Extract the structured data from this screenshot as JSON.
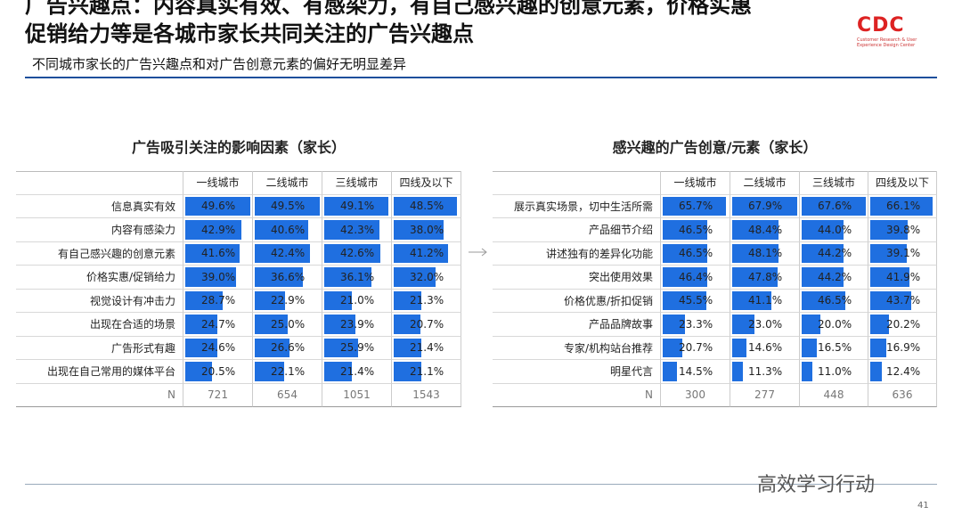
{
  "header": {
    "title_line1": "广告兴趣点：内容真实有效、有感染力，有自己感兴趣的创意元素，价格实惠",
    "title_line2": "促销给力等是各城市家长共同关注的广告兴趣点",
    "subtitle": "不同城市家长的广告兴趣点和对广告创意元素的偏好无明显差异",
    "logo": "CDC",
    "logo_sub": "Customer Research & User Experience Design Center"
  },
  "tables": [
    {
      "title": "广告吸引关注的影响因素（家长）",
      "columns": [
        "一线城市",
        "二线城市",
        "三线城市",
        "四线及以下"
      ],
      "rows": [
        {
          "label": "信息真实有效",
          "values": [
            49.6,
            49.5,
            49.1,
            48.5
          ],
          "value_labels": [
            "49.6%",
            "49.5%",
            "49.1%",
            "48.5%"
          ]
        },
        {
          "label": "内容有感染力",
          "values": [
            42.9,
            40.6,
            42.3,
            38.0
          ],
          "value_labels": [
            "42.9%",
            "40.6%",
            "42.3%",
            "38.0%"
          ]
        },
        {
          "label": "有自己感兴趣的创意元素",
          "values": [
            41.6,
            42.4,
            42.6,
            41.2
          ],
          "value_labels": [
            "41.6%",
            "42.4%",
            "42.6%",
            "41.2%"
          ]
        },
        {
          "label": "价格实惠/促销给力",
          "values": [
            39.0,
            36.6,
            36.1,
            32.0
          ],
          "value_labels": [
            "39.0%",
            "36.6%",
            "36.1%",
            "32.0%"
          ]
        },
        {
          "label": "视觉设计有冲击力",
          "values": [
            28.7,
            22.9,
            21.0,
            21.3
          ],
          "value_labels": [
            "28.7%",
            "22.9%",
            "21.0%",
            "21.3%"
          ]
        },
        {
          "label": "出现在合适的场景",
          "values": [
            24.7,
            25.0,
            23.9,
            20.7
          ],
          "value_labels": [
            "24.7%",
            "25.0%",
            "23.9%",
            "20.7%"
          ]
        },
        {
          "label": "广告形式有趣",
          "values": [
            24.6,
            26.6,
            25.9,
            21.4
          ],
          "value_labels": [
            "24.6%",
            "26.6%",
            "25.9%",
            "21.4%"
          ]
        },
        {
          "label": "出现在自己常用的媒体平台",
          "values": [
            20.5,
            22.1,
            21.4,
            21.1
          ],
          "value_labels": [
            "20.5%",
            "22.1%",
            "21.4%",
            "21.1%"
          ]
        }
      ],
      "n_label": "N",
      "n_values": [
        721,
        654,
        1051,
        1543
      ]
    },
    {
      "title": "感兴趣的广告创意/元素（家长）",
      "columns": [
        "一线城市",
        "二线城市",
        "三线城市",
        "四线及以下"
      ],
      "rows": [
        {
          "label": "展示真实场景，切中生活所需",
          "values": [
            65.7,
            67.9,
            67.6,
            66.1
          ],
          "value_labels": [
            "65.7%",
            "67.9%",
            "67.6%",
            "66.1%"
          ]
        },
        {
          "label": "产品细节介绍",
          "values": [
            46.5,
            48.4,
            44.0,
            39.8
          ],
          "value_labels": [
            "46.5%",
            "48.4%",
            "44.0%",
            "39.8%"
          ]
        },
        {
          "label": "讲述独有的差异化功能",
          "values": [
            46.5,
            48.1,
            44.2,
            39.1
          ],
          "value_labels": [
            "46.5%",
            "48.1%",
            "44.2%",
            "39.1%"
          ]
        },
        {
          "label": "突出使用效果",
          "values": [
            46.4,
            47.8,
            44.2,
            41.9
          ],
          "value_labels": [
            "46.4%",
            "47.8%",
            "44.2%",
            "41.9%"
          ]
        },
        {
          "label": "价格优惠/折扣促销",
          "values": [
            45.5,
            41.1,
            46.5,
            43.7
          ],
          "value_labels": [
            "45.5%",
            "41.1%",
            "46.5%",
            "43.7%"
          ]
        },
        {
          "label": "产品品牌故事",
          "values": [
            23.3,
            23.0,
            20.0,
            20.2
          ],
          "value_labels": [
            "23.3%",
            "23.0%",
            "20.0%",
            "20.2%"
          ]
        },
        {
          "label": "专家/机构站台推荐",
          "values": [
            20.7,
            14.6,
            16.5,
            16.9
          ],
          "value_labels": [
            "20.7%",
            "14.6%",
            "16.5%",
            "16.9%"
          ]
        },
        {
          "label": "明星代言",
          "values": [
            14.5,
            11.3,
            11.0,
            12.4
          ],
          "value_labels": [
            "14.5%",
            "11.3%",
            "11.0%",
            "12.4%"
          ]
        }
      ],
      "n_label": "N",
      "n_values": [
        300,
        277,
        448,
        636
      ]
    }
  ],
  "footer": {
    "watermark": "高效学习行动",
    "page": "41"
  }
}
